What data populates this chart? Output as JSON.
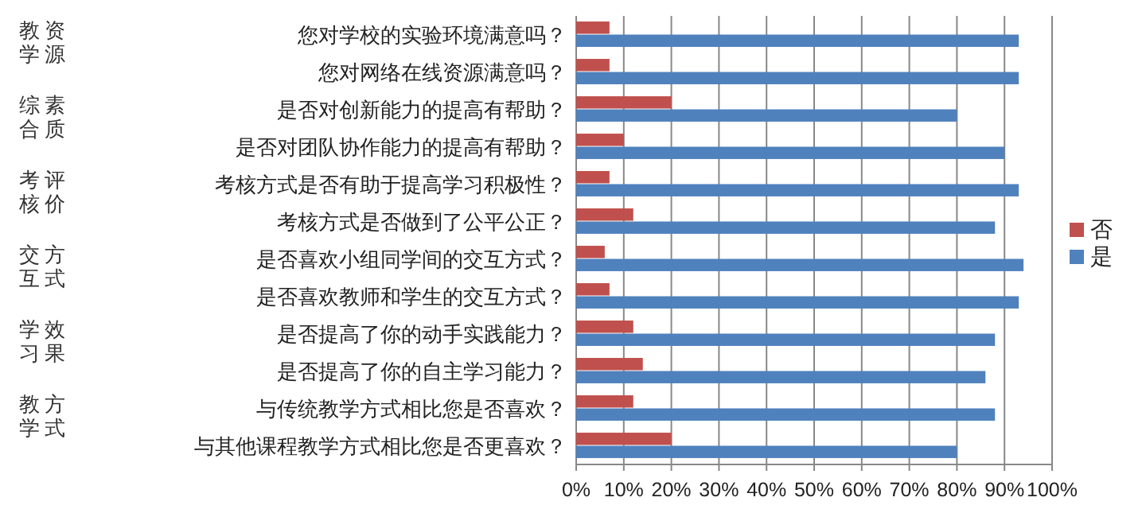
{
  "chart_data": {
    "type": "bar",
    "orientation": "horizontal",
    "categories": [
      "您对学校的实验环境满意吗？",
      "您对网络在线资源满意吗？",
      "是否对创新能力的提高有帮助？",
      "是否对团队协作能力的提高有帮助？",
      "考核方式是否有助于提高学习积极性？",
      "考核方式是否做到了公平公正？",
      "是否喜欢小组同学间的交互方式？",
      "是否喜欢教师和学生的交互方式？",
      "是否提高了你的动手实践能力？",
      "是否提高了你的自主学习能力？",
      "与传统教学方式相比您是否喜欢？",
      "与其他课程教学方式相比您是否更喜欢？"
    ],
    "series": [
      {
        "name": "否",
        "color": "#c0504d",
        "values": [
          7,
          7,
          20,
          10,
          7,
          12,
          6,
          7,
          12,
          14,
          12,
          20
        ]
      },
      {
        "name": "是",
        "color": "#4f81bd",
        "values": [
          93,
          93,
          80,
          90,
          93,
          88,
          94,
          93,
          88,
          86,
          88,
          80
        ]
      }
    ],
    "xlim": [
      0,
      100
    ],
    "xticks": [
      {
        "value": 0,
        "label": "0%"
      },
      {
        "value": 10,
        "label": "10%"
      },
      {
        "value": 20,
        "label": "20%"
      },
      {
        "value": 30,
        "label": "30%"
      },
      {
        "value": 40,
        "label": "40%"
      },
      {
        "value": 50,
        "label": "50%"
      },
      {
        "value": 60,
        "label": "60%"
      },
      {
        "value": 70,
        "label": "70%"
      },
      {
        "value": 80,
        "label": "80%"
      },
      {
        "value": 90,
        "label": "90%"
      },
      {
        "value": 100,
        "label": "100%"
      }
    ],
    "annotations": [
      "教学资源",
      "综合素质",
      "考核评价",
      "交互方式",
      "学习效果",
      "教学方式"
    ],
    "grid": "x",
    "legend": "right"
  }
}
